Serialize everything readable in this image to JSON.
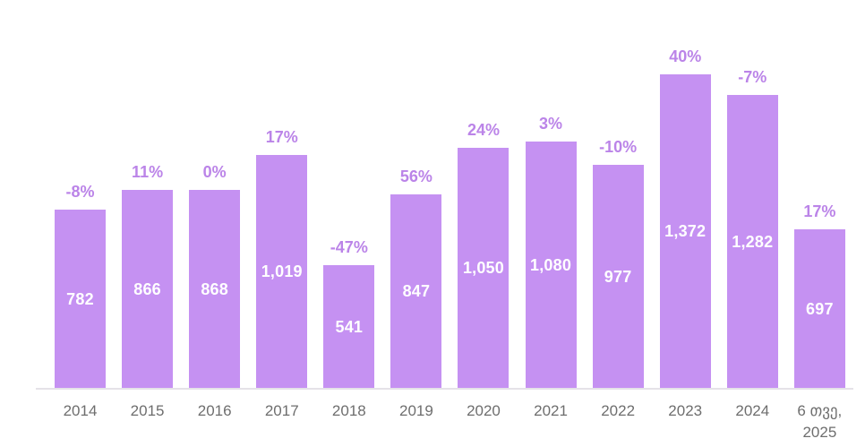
{
  "chart_data": {
    "type": "bar",
    "title": "",
    "xlabel": "",
    "ylabel": "",
    "categories": [
      "2014",
      "2015",
      "2016",
      "2017",
      "2018",
      "2019",
      "2020",
      "2021",
      "2022",
      "2023",
      "2024",
      "6 თვე,\n2025"
    ],
    "values": [
      782,
      866,
      868,
      1019,
      541,
      847,
      1050,
      1080,
      977,
      1372,
      1282,
      697
    ],
    "value_labels": [
      "782",
      "866",
      "868",
      "1,019",
      "541",
      "847",
      "1,050",
      "1,080",
      "977",
      "1,372",
      "1,282",
      "697"
    ],
    "pct_change_labels": [
      "-8%",
      "11%",
      "0%",
      "17%",
      "-47%",
      "56%",
      "24%",
      "3%",
      "-10%",
      "40%",
      "-7%",
      "17%"
    ],
    "ylim": [
      0,
      1372
    ],
    "grid": false,
    "legend": false,
    "y_axis_visible": false
  },
  "colors": {
    "background": "#ffffff",
    "bar_fill": "#c591f2",
    "pct_label_text": "#bb84e8",
    "bar_value_text": "#ffffff",
    "x_axis_label_text": "#6e6e6e",
    "axis_line": "#e5e2e8"
  }
}
